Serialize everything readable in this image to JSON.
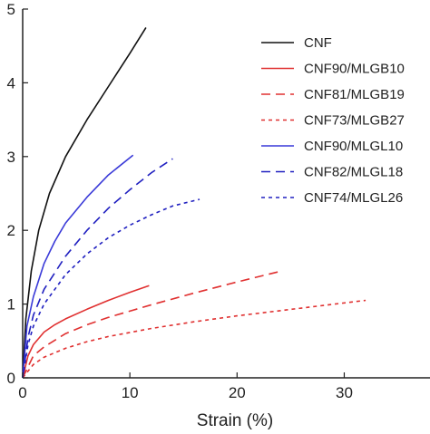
{
  "chart_data": {
    "type": "line",
    "xlabel": "Strain (%)",
    "ylabel": "",
    "xlim": [
      0,
      38
    ],
    "ylim": [
      0,
      5
    ],
    "xticks": [
      0,
      10,
      20,
      30
    ],
    "yticks": [
      0,
      1,
      2,
      3,
      4,
      5
    ],
    "grid": false,
    "legend_position": "top-right",
    "series": [
      {
        "name": "CNF",
        "color": "#111111",
        "dash": "solid",
        "x": [
          0,
          0.3,
          0.8,
          1.5,
          2.5,
          4,
          6,
          8,
          10,
          11.5
        ],
        "y": [
          0,
          0.8,
          1.45,
          2.0,
          2.5,
          3.0,
          3.5,
          3.95,
          4.4,
          4.75
        ]
      },
      {
        "name": "CNF90/MLGB10",
        "color": "#e03030",
        "dash": "solid",
        "x": [
          0,
          0.5,
          1,
          2,
          3,
          4,
          6,
          8,
          10,
          11.8
        ],
        "y": [
          0,
          0.3,
          0.45,
          0.62,
          0.72,
          0.8,
          0.93,
          1.05,
          1.16,
          1.25
        ]
      },
      {
        "name": "CNF81/MLGB19",
        "color": "#e03030",
        "dash": "long",
        "x": [
          0,
          1,
          2,
          4,
          6,
          8,
          12,
          16,
          20,
          24.2
        ],
        "y": [
          0,
          0.3,
          0.42,
          0.6,
          0.72,
          0.82,
          0.99,
          1.15,
          1.3,
          1.45
        ]
      },
      {
        "name": "CNF73/MLGB27",
        "color": "#e03030",
        "dash": "short",
        "x": [
          0,
          1,
          2,
          4,
          6,
          8,
          12,
          16,
          20,
          24,
          28,
          32
        ],
        "y": [
          0,
          0.18,
          0.28,
          0.4,
          0.49,
          0.56,
          0.67,
          0.76,
          0.84,
          0.91,
          0.98,
          1.05
        ]
      },
      {
        "name": "CNF90/MLGL10",
        "color": "#3a3ad8",
        "dash": "solid",
        "x": [
          0,
          0.4,
          1,
          2,
          3,
          4,
          6,
          8,
          10.3
        ],
        "y": [
          0,
          0.7,
          1.1,
          1.55,
          1.85,
          2.1,
          2.45,
          2.75,
          3.02
        ]
      },
      {
        "name": "CNF82/MLGL18",
        "color": "#2020c0",
        "dash": "long",
        "x": [
          0,
          0.5,
          1,
          2,
          4,
          6,
          8,
          10,
          12,
          14
        ],
        "y": [
          0,
          0.55,
          0.85,
          1.2,
          1.65,
          2.0,
          2.3,
          2.55,
          2.78,
          2.97
        ]
      },
      {
        "name": "CNF74/MLGL26",
        "color": "#2020c0",
        "dash": "short",
        "x": [
          0,
          0.5,
          1,
          2,
          4,
          6,
          8,
          10,
          12,
          14,
          16.5
        ],
        "y": [
          0,
          0.45,
          0.7,
          1.0,
          1.4,
          1.68,
          1.9,
          2.07,
          2.21,
          2.33,
          2.42
        ]
      }
    ]
  }
}
